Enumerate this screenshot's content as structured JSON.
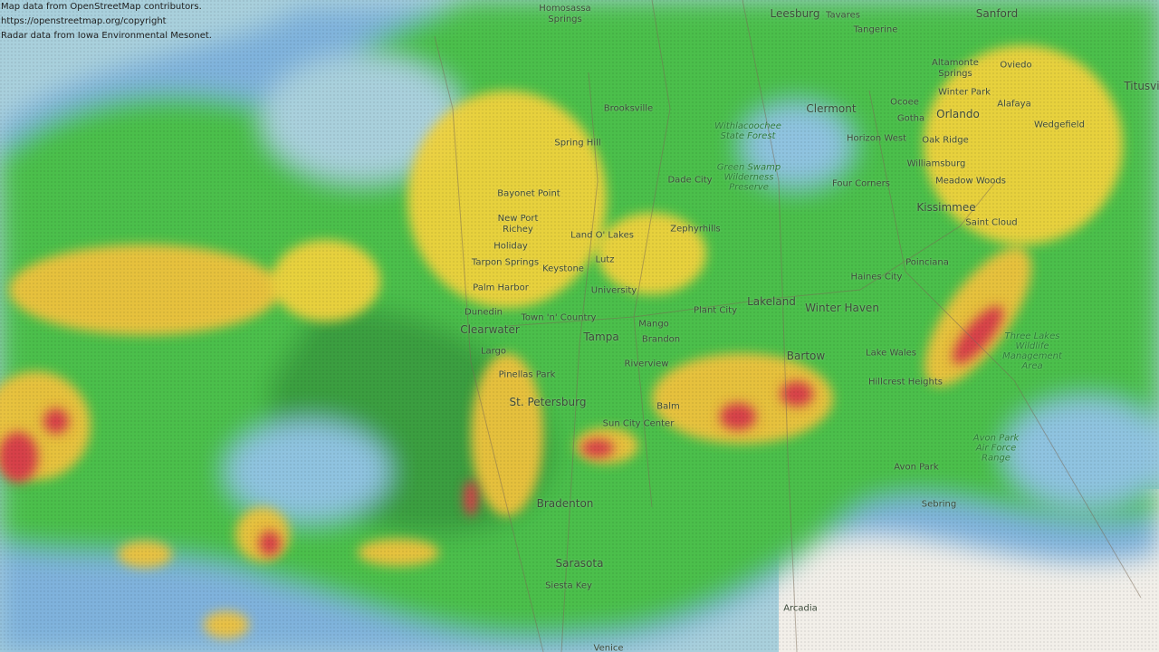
{
  "attribution": [
    "Map data from OpenStreetMap contributors.",
    "https://openstreetmap.org/copyright",
    "Radar data from Iowa Environmental Mesonet."
  ],
  "colors": {
    "water": "#a9d0dc",
    "land": "#f2efe9",
    "radar_light": "#6fa8d8",
    "radar_green": "#4cbf4c",
    "radar_dark_green": "#2f8f3a",
    "radar_yellow": "#f2d338",
    "radar_orange": "#e8a040",
    "radar_red": "#d6404a"
  },
  "places": {
    "homosassa": "Homosassa\nSprings",
    "leesburg": "Leesburg",
    "tavares": "Tavares",
    "sanford": "Sanford",
    "tangerine": "Tangerine",
    "altamonte": "Altamonte\nSprings",
    "oviedo": "Oviedo",
    "winterpark": "Winter Park",
    "titusville": "Titusville",
    "brooksville": "Brooksville",
    "clermont": "Clermont",
    "ocoee": "Ocoee",
    "orlando": "Orlando",
    "gotha": "Gotha",
    "alafaya": "Alafaya",
    "wedgefield": "Wedgefield",
    "springhill": "Spring Hill",
    "horizonwest": "Horizon West",
    "oakridge": "Oak Ridge",
    "dadecity": "Dade City",
    "fourcorners": "Four Corners",
    "williamsburg": "Williamsburg",
    "meadowwoods": "Meadow Woods",
    "bayonet": "Bayonet Point",
    "kissimmee": "Kissimmee",
    "saintcloud": "Saint Cloud",
    "newport": "New Port\nRichey",
    "zephyrhills": "Zephyrhills",
    "landolakes": "Land O' Lakes",
    "holiday": "Holiday",
    "tarpon": "Tarpon Springs",
    "keystone": "Keystone",
    "lutz": "Lutz",
    "poinciana": "Poinciana",
    "haines": "Haines City",
    "palmharbor": "Palm Harbor",
    "university": "University",
    "dunedin": "Dunedin",
    "lakeland": "Lakeland",
    "plantcity": "Plant City",
    "winterhaven": "Winter Haven",
    "towncountry": "Town 'n' Country",
    "mango": "Mango",
    "clearwater": "Clearwater",
    "tampa": "Tampa",
    "brandon": "Brandon",
    "largo": "Largo",
    "bartow": "Bartow",
    "lakewales": "Lake Wales",
    "riverview": "Riverview",
    "pinellas": "Pinellas Park",
    "hillcrest": "Hillcrest Heights",
    "stpete": "St. Petersburg",
    "balm": "Balm",
    "suncity": "Sun City Center",
    "avonpark": "Avon Park",
    "bradenton": "Bradenton",
    "sebring": "Sebring",
    "sarasota": "Sarasota",
    "siesta": "Siesta Key",
    "arcadia": "Arcadia",
    "venice": "Venice"
  },
  "parks": {
    "withlacoochee": "Withlacoochee\nState Forest",
    "greenswamp": "Green Swamp\nWilderness\nPreserve",
    "threelakes": "Three Lakes\nWildlife\nManagement\nArea",
    "avonrange": "Avon Park\nAir Force\nRange"
  }
}
